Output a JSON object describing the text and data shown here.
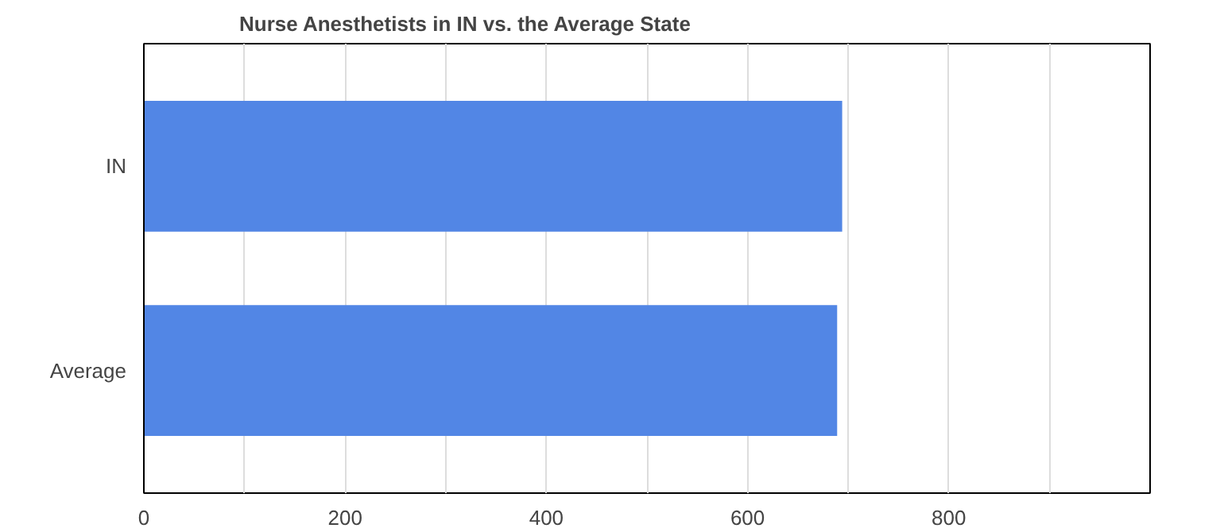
{
  "chart_data": {
    "type": "bar",
    "orientation": "horizontal",
    "title": "Nurse Anesthetists in IN vs. the Average State",
    "categories": [
      "IN",
      "Average"
    ],
    "values": [
      694,
      689
    ],
    "color": "#5286e5",
    "xlim": [
      0,
      1000
    ],
    "xticks": [
      0,
      {
        "value": 100,
        "label": null
      },
      200,
      {
        "value": 300,
        "label": null
      },
      400,
      {
        "value": 500,
        "label": null
      },
      600,
      {
        "value": 700,
        "label": null
      },
      800,
      {
        "value": 900,
        "label": null
      }
    ],
    "grid": "x"
  }
}
